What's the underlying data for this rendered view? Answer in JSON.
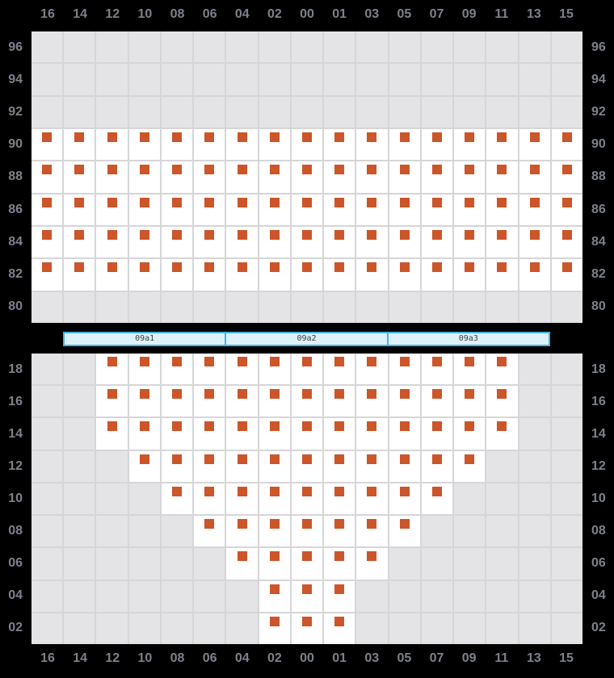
{
  "colors": {
    "background": "#000000",
    "grid_line": "#d6d6d9",
    "cell_empty": "#e4e4e6",
    "cell_slot": "#ffffff",
    "container": "#cc5529",
    "axis_label": "#7c818b",
    "hatch_border": "#41b4e8",
    "hatch_fill": "#def0fa",
    "hatch_label": "#3d3d3d"
  },
  "columns": [
    "16",
    "14",
    "12",
    "10",
    "08",
    "06",
    "04",
    "02",
    "00",
    "01",
    "03",
    "05",
    "07",
    "09",
    "11",
    "13",
    "15"
  ],
  "deck": {
    "tiers": [
      "96",
      "94",
      "92",
      "90",
      "88",
      "86",
      "84",
      "82",
      "80"
    ],
    "rows": [
      {
        "tier": "96",
        "slots": [],
        "occupied": []
      },
      {
        "tier": "94",
        "slots": [],
        "occupied": []
      },
      {
        "tier": "92",
        "slots": [],
        "occupied": []
      },
      {
        "tier": "90",
        "slots": [
          "16",
          "14",
          "12",
          "10",
          "08",
          "06",
          "04",
          "02",
          "00",
          "01",
          "03",
          "05",
          "07",
          "09",
          "11",
          "13",
          "15"
        ],
        "occupied": [
          "16",
          "14",
          "12",
          "10",
          "08",
          "06",
          "04",
          "02",
          "00",
          "01",
          "03",
          "05",
          "07",
          "09",
          "11",
          "13",
          "15"
        ]
      },
      {
        "tier": "88",
        "slots": [
          "16",
          "14",
          "12",
          "10",
          "08",
          "06",
          "04",
          "02",
          "00",
          "01",
          "03",
          "05",
          "07",
          "09",
          "11",
          "13",
          "15"
        ],
        "occupied": [
          "16",
          "14",
          "12",
          "10",
          "08",
          "06",
          "04",
          "02",
          "00",
          "01",
          "03",
          "05",
          "07",
          "09",
          "11",
          "13",
          "15"
        ]
      },
      {
        "tier": "86",
        "slots": [
          "16",
          "14",
          "12",
          "10",
          "08",
          "06",
          "04",
          "02",
          "00",
          "01",
          "03",
          "05",
          "07",
          "09",
          "11",
          "13",
          "15"
        ],
        "occupied": [
          "16",
          "14",
          "12",
          "10",
          "08",
          "06",
          "04",
          "02",
          "00",
          "01",
          "03",
          "05",
          "07",
          "09",
          "11",
          "13",
          "15"
        ]
      },
      {
        "tier": "84",
        "slots": [
          "16",
          "14",
          "12",
          "10",
          "08",
          "06",
          "04",
          "02",
          "00",
          "01",
          "03",
          "05",
          "07",
          "09",
          "11",
          "13",
          "15"
        ],
        "occupied": [
          "16",
          "14",
          "12",
          "10",
          "08",
          "06",
          "04",
          "02",
          "00",
          "01",
          "03",
          "05",
          "07",
          "09",
          "11",
          "13",
          "15"
        ]
      },
      {
        "tier": "82",
        "slots": [
          "16",
          "14",
          "12",
          "10",
          "08",
          "06",
          "04",
          "02",
          "00",
          "01",
          "03",
          "05",
          "07",
          "09",
          "11",
          "13",
          "15"
        ],
        "occupied": [
          "16",
          "14",
          "12",
          "10",
          "08",
          "06",
          "04",
          "02",
          "00",
          "01",
          "03",
          "05",
          "07",
          "09",
          "11",
          "13",
          "15"
        ]
      },
      {
        "tier": "80",
        "slots": [],
        "occupied": []
      }
    ]
  },
  "hatch_covers": {
    "labels": [
      "09a1",
      "09a2",
      "09a3"
    ]
  },
  "hold": {
    "tiers": [
      "18",
      "16",
      "14",
      "12",
      "10",
      "08",
      "06",
      "04",
      "02"
    ],
    "rows": [
      {
        "tier": "18",
        "slots": [
          "12",
          "10",
          "08",
          "06",
          "04",
          "02",
          "00",
          "01",
          "03",
          "05",
          "07",
          "09",
          "11"
        ],
        "occupied": [
          "12",
          "10",
          "08",
          "06",
          "04",
          "02",
          "00",
          "01",
          "03",
          "05",
          "07",
          "09",
          "11"
        ]
      },
      {
        "tier": "16",
        "slots": [
          "12",
          "10",
          "08",
          "06",
          "04",
          "02",
          "00",
          "01",
          "03",
          "05",
          "07",
          "09",
          "11"
        ],
        "occupied": [
          "12",
          "10",
          "08",
          "06",
          "04",
          "02",
          "00",
          "01",
          "03",
          "05",
          "07",
          "09",
          "11"
        ]
      },
      {
        "tier": "14",
        "slots": [
          "12",
          "10",
          "08",
          "06",
          "04",
          "02",
          "00",
          "01",
          "03",
          "05",
          "07",
          "09",
          "11"
        ],
        "occupied": [
          "12",
          "10",
          "08",
          "06",
          "04",
          "02",
          "00",
          "01",
          "03",
          "05",
          "07",
          "09",
          "11"
        ]
      },
      {
        "tier": "12",
        "slots": [
          "10",
          "08",
          "06",
          "04",
          "02",
          "00",
          "01",
          "03",
          "05",
          "07",
          "09"
        ],
        "occupied": [
          "10",
          "08",
          "06",
          "04",
          "02",
          "00",
          "01",
          "03",
          "05",
          "07",
          "09"
        ]
      },
      {
        "tier": "10",
        "slots": [
          "08",
          "06",
          "04",
          "02",
          "00",
          "01",
          "03",
          "05",
          "07"
        ],
        "occupied": [
          "08",
          "06",
          "04",
          "02",
          "00",
          "01",
          "03",
          "05",
          "07"
        ]
      },
      {
        "tier": "08",
        "slots": [
          "06",
          "04",
          "02",
          "00",
          "01",
          "03",
          "05"
        ],
        "occupied": [
          "06",
          "04",
          "02",
          "00",
          "01",
          "03",
          "05"
        ]
      },
      {
        "tier": "06",
        "slots": [
          "04",
          "02",
          "00",
          "01",
          "03"
        ],
        "occupied": [
          "04",
          "02",
          "00",
          "01",
          "03"
        ]
      },
      {
        "tier": "04",
        "slots": [
          "02",
          "00",
          "01"
        ],
        "occupied": [
          "02",
          "00",
          "01"
        ]
      },
      {
        "tier": "02",
        "slots": [
          "02",
          "00",
          "01"
        ],
        "occupied": [
          "02",
          "00",
          "01"
        ]
      }
    ]
  }
}
